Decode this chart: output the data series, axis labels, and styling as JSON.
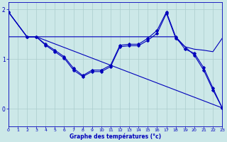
{
  "title": "Graphe des températures (°c)",
  "bg_color": "#cce8e8",
  "line_color": "#0000bb",
  "grid_color": "#aacccc",
  "xlim": [
    0,
    23
  ],
  "ylim": [
    -0.35,
    2.15
  ],
  "yticks": [
    0,
    1,
    2
  ],
  "xticks": [
    0,
    1,
    2,
    3,
    4,
    5,
    6,
    7,
    8,
    9,
    10,
    11,
    12,
    13,
    14,
    15,
    16,
    17,
    18,
    19,
    20,
    21,
    22,
    23
  ],
  "series1_x": [
    0,
    2,
    3,
    4,
    5,
    6,
    7,
    8,
    9,
    10,
    11,
    12,
    13,
    14,
    15,
    16,
    17,
    18,
    19,
    20,
    21,
    22,
    23
  ],
  "series1_y": [
    1.95,
    1.45,
    1.45,
    1.3,
    1.18,
    1.05,
    0.82,
    0.67,
    0.78,
    0.78,
    0.88,
    1.28,
    1.3,
    1.3,
    1.42,
    1.58,
    1.95,
    1.45,
    1.2,
    1.12,
    0.83,
    0.42,
    0.02
  ],
  "series2_x": [
    0,
    2,
    3,
    4,
    5,
    6,
    7,
    8,
    9,
    10,
    11,
    12,
    13,
    14,
    15,
    16,
    17,
    18,
    20,
    21,
    22,
    23
  ],
  "series2_y": [
    1.95,
    1.45,
    1.45,
    1.28,
    1.15,
    1.02,
    0.78,
    0.65,
    0.75,
    0.75,
    0.85,
    1.25,
    1.27,
    1.27,
    1.38,
    1.52,
    1.92,
    1.42,
    1.08,
    0.78,
    0.38,
    0.02
  ],
  "series3_x": [
    0,
    2,
    3,
    23
  ],
  "series3_y": [
    1.95,
    1.45,
    1.45,
    0.02
  ],
  "series4_x": [
    0,
    2,
    3,
    4,
    5,
    6,
    7,
    8,
    9,
    10,
    11,
    12,
    13,
    14,
    15,
    16,
    17,
    18,
    19,
    20,
    21,
    22,
    23
  ],
  "series4_y": [
    1.45,
    1.45,
    1.45,
    1.45,
    1.45,
    1.45,
    1.45,
    1.45,
    1.45,
    1.45,
    1.45,
    1.45,
    1.45,
    1.45,
    1.45,
    1.45,
    1.45,
    1.45,
    1.25,
    1.2,
    1.18,
    1.15,
    1.42
  ]
}
